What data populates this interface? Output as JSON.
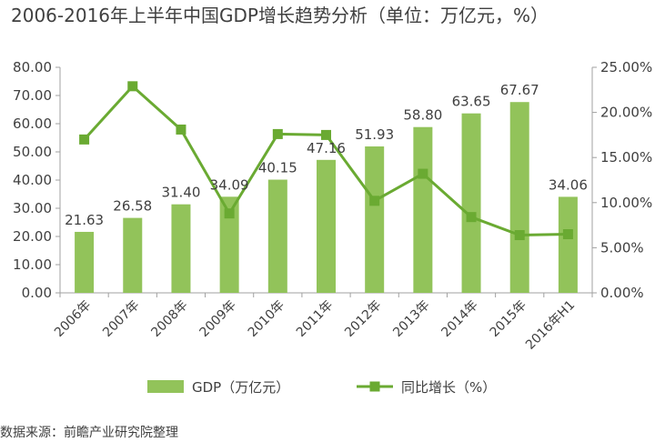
{
  "chart_data": {
    "type": "bar",
    "title": "2006-2016年上半年中国GDP增长趋势分析（单位：万亿元，%）",
    "categories": [
      "2006年",
      "2007年",
      "2008年",
      "2009年",
      "2010年",
      "2011年",
      "2012年",
      "2013年",
      "2014年",
      "2015年",
      "2016年H1"
    ],
    "series": [
      {
        "name": "GDP（万亿元）",
        "type": "bar",
        "axis": "left",
        "values": [
          21.63,
          26.58,
          31.4,
          34.09,
          40.15,
          47.16,
          51.93,
          58.8,
          63.65,
          67.67,
          34.06
        ],
        "labels": [
          "21.63",
          "26.58",
          "31.40",
          "34.09",
          "40.15",
          "47.16",
          "51.93",
          "58.80",
          "63.65",
          "67.67",
          "34.06"
        ]
      },
      {
        "name": "同比增长（%）",
        "type": "line",
        "axis": "right",
        "values": [
          17.0,
          22.9,
          18.1,
          8.8,
          17.6,
          17.5,
          10.2,
          13.2,
          8.4,
          6.4,
          6.5
        ]
      }
    ],
    "y_left": {
      "min": 0,
      "max": 80,
      "step": 10,
      "tick_labels": [
        "0.00",
        "10.00",
        "20.00",
        "30.00",
        "40.00",
        "50.00",
        "60.00",
        "70.00",
        "80.00"
      ]
    },
    "y_right": {
      "min": 0,
      "max": 25,
      "step": 5,
      "tick_labels": [
        "0.00%",
        "5.00%",
        "10.00%",
        "15.00%",
        "20.00%",
        "25.00%"
      ]
    },
    "grid": false,
    "legend_position": "bottom",
    "colors": {
      "bar": "#92c35a",
      "line": "#6aaa32",
      "axis": "#a0a0a0"
    }
  },
  "source": "数据来源：前瞻产业研究院整理"
}
